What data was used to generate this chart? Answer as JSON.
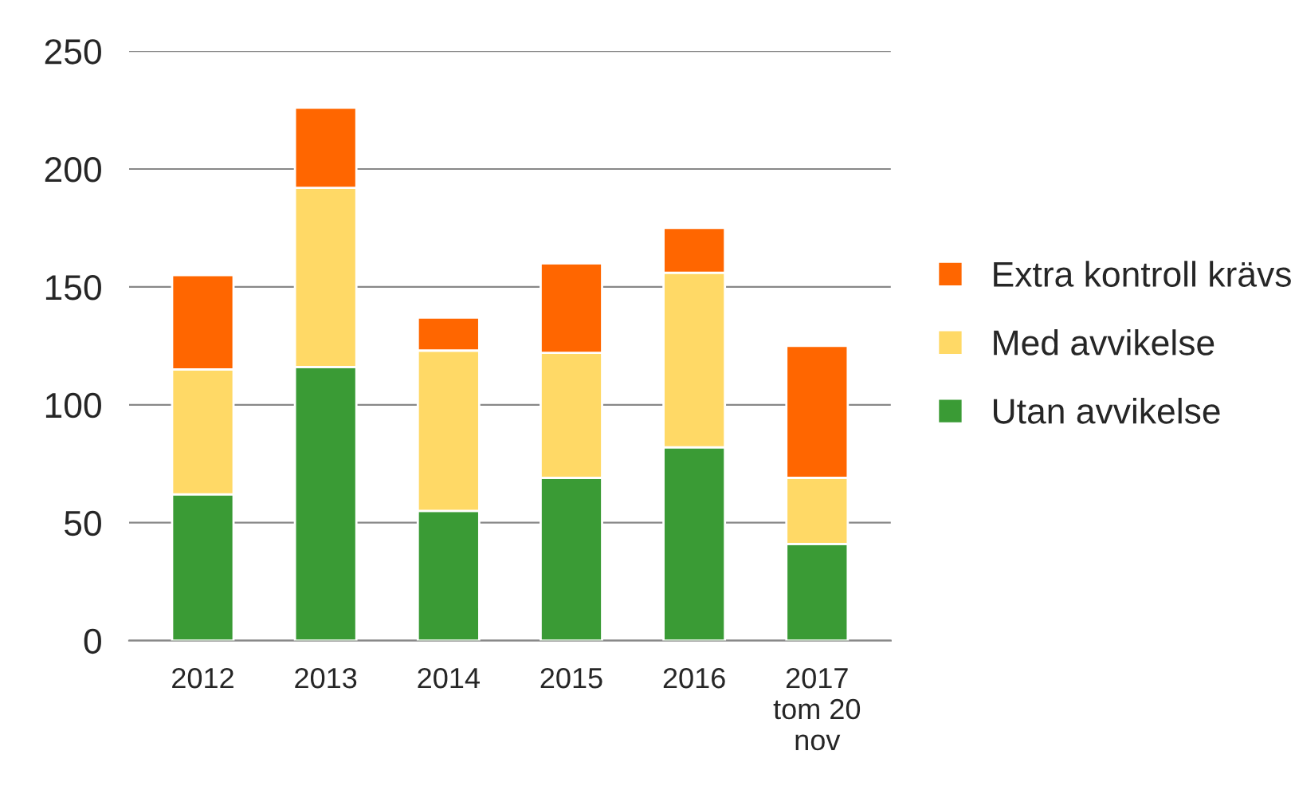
{
  "chart_data": {
    "type": "bar",
    "stacked": true,
    "categories": [
      "2012",
      "2013",
      "2014",
      "2015",
      "2016",
      "2017\ntom 20\nnov"
    ],
    "series": [
      {
        "name": "Utan avvikelse",
        "color": "#3a9b35",
        "values": [
          62,
          116,
          55,
          69,
          82,
          41
        ]
      },
      {
        "name": "Med avvikelse",
        "color": "#ffd966",
        "values": [
          53,
          76,
          68,
          53,
          74,
          28
        ]
      },
      {
        "name": "Extra kontroll krävs",
        "color": "#ff6600",
        "values": [
          40,
          34,
          14,
          38,
          19,
          56
        ]
      }
    ],
    "ylim": [
      0,
      250
    ],
    "yticks": [
      0,
      50,
      100,
      150,
      200,
      250
    ],
    "grid": "y",
    "legend": "right"
  }
}
